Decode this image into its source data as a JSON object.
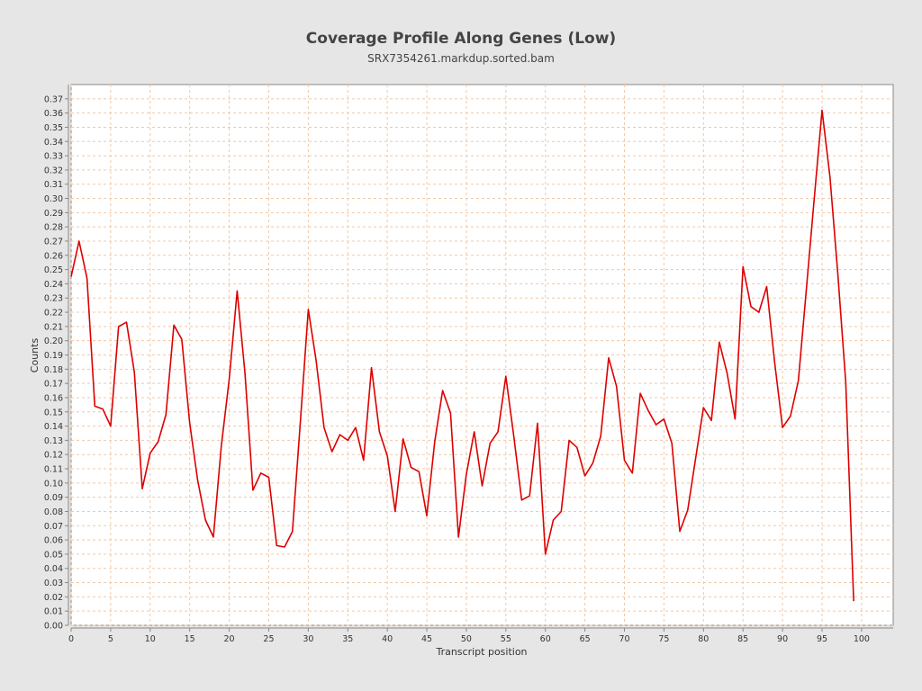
{
  "chart_data": {
    "type": "line",
    "title": "Coverage Profile Along Genes (Low)",
    "subtitle": "SRX7354261.markdup.sorted.bam",
    "xlabel": "Transcript position",
    "ylabel": "Counts",
    "xlim": [
      0,
      104
    ],
    "ylim": [
      0,
      0.38
    ],
    "xticks": [
      0,
      5,
      10,
      15,
      20,
      25,
      30,
      35,
      40,
      45,
      50,
      55,
      60,
      65,
      70,
      75,
      80,
      85,
      90,
      95,
      100
    ],
    "yticks": [
      0.0,
      0.01,
      0.02,
      0.03,
      0.04,
      0.05,
      0.06,
      0.07,
      0.08,
      0.09,
      0.1,
      0.11,
      0.12,
      0.13,
      0.14,
      0.15,
      0.16,
      0.17,
      0.18,
      0.19,
      0.2,
      0.21,
      0.22,
      0.23,
      0.24,
      0.25,
      0.26,
      0.27,
      0.28,
      0.29,
      0.3,
      0.31,
      0.32,
      0.33,
      0.34,
      0.35,
      0.36,
      0.37
    ],
    "grid": true,
    "series": [
      {
        "color": "#dd0000",
        "x": [
          0,
          1,
          2,
          3,
          4,
          5,
          6,
          7,
          8,
          9,
          10,
          11,
          12,
          13,
          14,
          15,
          16,
          17,
          18,
          19,
          20,
          21,
          22,
          23,
          24,
          25,
          26,
          27,
          28,
          29,
          30,
          31,
          32,
          33,
          34,
          35,
          36,
          37,
          38,
          39,
          40,
          41,
          42,
          43,
          44,
          45,
          46,
          47,
          48,
          49,
          50,
          51,
          52,
          53,
          54,
          55,
          56,
          57,
          58,
          59,
          60,
          61,
          62,
          63,
          64,
          65,
          66,
          67,
          68,
          69,
          70,
          71,
          72,
          73,
          74,
          75,
          76,
          77,
          78,
          79,
          80,
          81,
          82,
          83,
          84,
          85,
          86,
          87,
          88,
          89,
          90,
          91,
          92,
          93,
          94,
          95,
          96,
          97,
          98,
          99
        ],
        "values": [
          0.245,
          0.27,
          0.244,
          0.154,
          0.152,
          0.14,
          0.21,
          0.213,
          0.178,
          0.096,
          0.121,
          0.129,
          0.148,
          0.211,
          0.201,
          0.142,
          0.102,
          0.074,
          0.062,
          0.126,
          0.173,
          0.235,
          0.177,
          0.095,
          0.107,
          0.104,
          0.056,
          0.055,
          0.066,
          0.143,
          0.222,
          0.186,
          0.139,
          0.122,
          0.134,
          0.13,
          0.139,
          0.116,
          0.181,
          0.136,
          0.119,
          0.08,
          0.131,
          0.111,
          0.108,
          0.077,
          0.129,
          0.165,
          0.149,
          0.062,
          0.106,
          0.136,
          0.098,
          0.128,
          0.136,
          0.175,
          0.133,
          0.088,
          0.091,
          0.142,
          0.05,
          0.074,
          0.08,
          0.13,
          0.125,
          0.105,
          0.114,
          0.133,
          0.188,
          0.168,
          0.116,
          0.107,
          0.163,
          0.151,
          0.141,
          0.145,
          0.128,
          0.066,
          0.081,
          0.117,
          0.153,
          0.144,
          0.199,
          0.177,
          0.145,
          0.252,
          0.224,
          0.22,
          0.238,
          0.185,
          0.139,
          0.147,
          0.172,
          0.235,
          0.299,
          0.362,
          0.315,
          0.247,
          0.171,
          0.017
        ]
      }
    ]
  }
}
